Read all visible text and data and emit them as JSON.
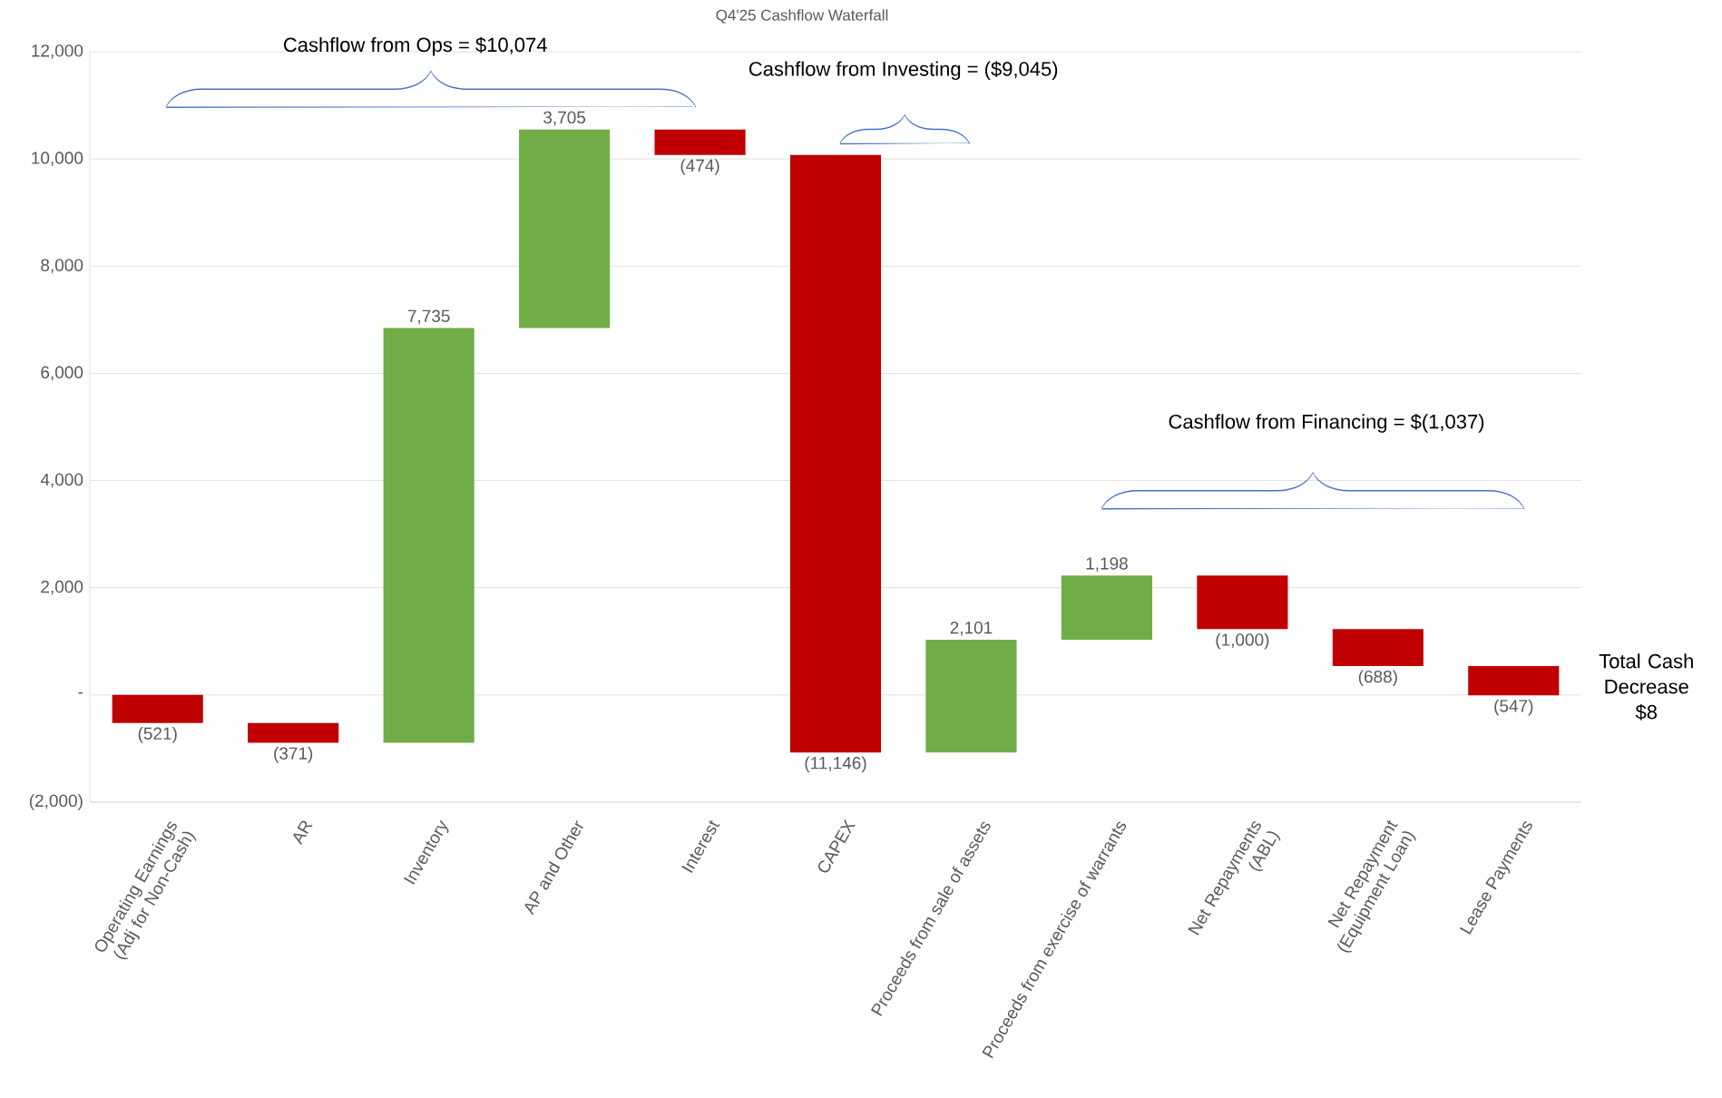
{
  "chart_data": {
    "type": "bar",
    "title": "Q4'25 Cashflow Waterfall",
    "categories": [
      "Operating Earnings (Adj for Non-Cash)",
      "AR",
      "Inventory",
      "AP and Other",
      "Interest",
      "CAPEX",
      "Proceeds from sale of assets",
      "Proceeds from exercise of warrants",
      "Net Repayments (ABL)",
      "Net Repayment (Equipment Loan)",
      "Lease Payments"
    ],
    "values": [
      -521,
      -371,
      7735,
      3705,
      -474,
      -11146,
      2101,
      1198,
      -1000,
      -688,
      -547
    ],
    "base": [
      0,
      -521,
      -892,
      6843,
      10548,
      10074,
      -1072,
      1029,
      2227,
      1227,
      539
    ],
    "colors": [
      "#c00000",
      "#c00000",
      "#70ad47",
      "#70ad47",
      "#c00000",
      "#c00000",
      "#70ad47",
      "#70ad47",
      "#c00000",
      "#c00000",
      "#c00000"
    ],
    "value_labels": [
      "(521)",
      "(371)",
      "7,735",
      "3,705",
      "(474)",
      "(11,146)",
      "2,101",
      "1,198",
      "(1,000)",
      "(688)",
      "(547)"
    ],
    "ylim": [
      -2000,
      12000
    ],
    "yticks": [
      {
        "value": -2000,
        "label": "(2,000)"
      },
      {
        "value": 0,
        "label": "-"
      },
      {
        "value": 2000,
        "label": "2,000"
      },
      {
        "value": 4000,
        "label": "4,000"
      },
      {
        "value": 6000,
        "label": "6,000"
      },
      {
        "value": 8000,
        "label": "8,000"
      },
      {
        "value": 10000,
        "label": "10,000"
      },
      {
        "value": 12000,
        "label": "12,000"
      }
    ],
    "grid": "y",
    "annotations": [
      "Cashflow from Ops = $10,074",
      "Cashflow from Investing = ($9,045)",
      "Cashflow from Financing = $(1,037)",
      "Total Cash Decrease $8"
    ]
  }
}
